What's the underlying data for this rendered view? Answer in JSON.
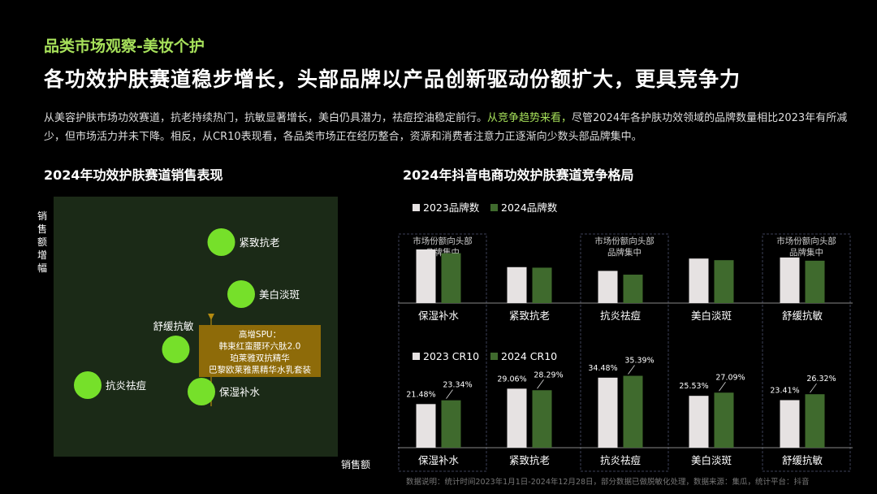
{
  "header": {
    "section_label": "品类市场观察-美妆个护",
    "headline": "各功效护肤赛道稳步增长，头部品牌以产品创新驱动份额扩大，更具竞争力"
  },
  "intro": {
    "part1": "从美容护肤市场功效赛道，抗老持续热门，抗敏显著增长，美白仍具潜力，祛痘控油稳定前行。",
    "part2": "从竞争趋势来看，",
    "part3": "尽管2024年各护肤功效领域的品牌数量相比2023年有所减少，但市场活力并未下降。相反，从CR10表现看，各品类市场正在经历整合，资源和消费者注意力正逐渐向少数头部品牌集中。"
  },
  "colors": {
    "accent_green": "#a6e05a",
    "bubble_green": "#76e02a",
    "bar_2023": "#e6e2e2",
    "bar_2024": "#3f6a2d",
    "callout_bg": "#8e6b09",
    "scatter_bg": "#1b2a17"
  },
  "footnote": "数据说明：统计时间2023年1月1日-2024年12月28日，部分数据已做脱敏化处理，数据来源：集瓜，统计平台：抖音",
  "chart_data": [
    {
      "type": "scatter",
      "title": "2024年功效护肤赛道销售表现",
      "xlabel": "销售额",
      "ylabel": "销售额增幅",
      "points": [
        {
          "label": "抗炎祛痘",
          "x": 1.2,
          "y": 2.2
        },
        {
          "label": "舒缓抗敏",
          "x": 4.3,
          "y": 3.3
        },
        {
          "label": "紧致抗老",
          "x": 5.9,
          "y": 6.6
        },
        {
          "label": "美白淡斑",
          "x": 6.6,
          "y": 5.0
        },
        {
          "label": "保湿补水",
          "x": 5.2,
          "y": 2.0
        }
      ],
      "callout": {
        "title": "高增SPU：",
        "lines": [
          "韩束红蛮腰环六肽2.0",
          "珀莱雅双抗精华",
          "巴黎欧莱雅黑精华水乳套装"
        ]
      }
    },
    {
      "type": "bar",
      "title": "2024年抖音电商功效护肤赛道竞争格局",
      "categories": [
        "保湿补水",
        "紧致抗老",
        "抗炎祛痘",
        "美白淡斑",
        "舒缓抗敏"
      ],
      "series": [
        {
          "name": "2023品牌数",
          "values": [
            100,
            67,
            60,
            83,
            85
          ]
        },
        {
          "name": "2024品牌数",
          "values": [
            93,
            66,
            53,
            80,
            79
          ]
        }
      ],
      "annotation": "市场份额向头部品牌集中",
      "annotated_categories": [
        "保湿补水",
        "抗炎祛痘",
        "舒缓抗敏"
      ],
      "ylim": [
        0,
        120
      ]
    },
    {
      "type": "bar",
      "categories": [
        "保湿补水",
        "紧致抗老",
        "抗炎祛痘",
        "美白淡斑",
        "舒缓抗敏"
      ],
      "series": [
        {
          "name": "2023 CR10",
          "values": [
            21.48,
            29.06,
            34.48,
            25.53,
            23.41
          ],
          "labels": [
            "21.48%",
            "29.06%",
            "34.48%",
            "25.53%",
            "23.41%"
          ]
        },
        {
          "name": "2024 CR10",
          "values": [
            23.34,
            28.29,
            35.39,
            27.09,
            26.32
          ],
          "labels": [
            "23.34%",
            "28.29%",
            "35.39%",
            "27.09%",
            "26.32%"
          ]
        }
      ],
      "ylim": [
        0,
        40
      ]
    }
  ]
}
